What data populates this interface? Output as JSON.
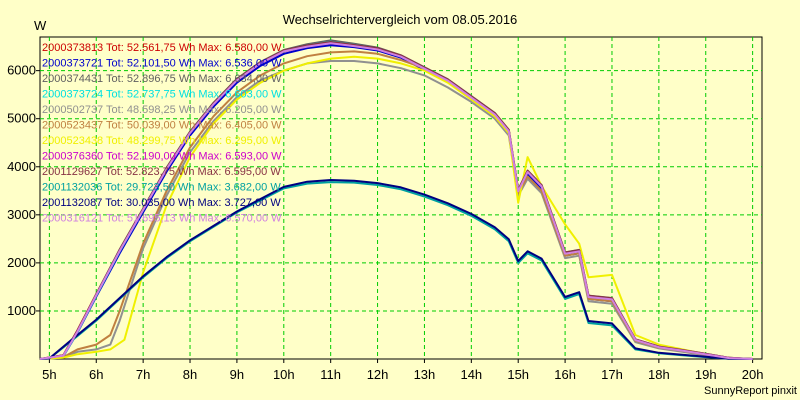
{
  "chart_data": {
    "type": "line",
    "title": "Wechselrichtervergleich vom 08.05.2016",
    "ylabel": "W",
    "xlabel": "",
    "xlim": [
      4.8,
      20.2
    ],
    "ylim": [
      0,
      6700
    ],
    "x_ticks": [
      5,
      6,
      7,
      8,
      9,
      10,
      11,
      12,
      13,
      14,
      15,
      16,
      17,
      18,
      19,
      20
    ],
    "x_tick_labels": [
      "5h",
      "6h",
      "7h",
      "8h",
      "9h",
      "10h",
      "11h",
      "12h",
      "13h",
      "14h",
      "15h",
      "16h",
      "17h",
      "18h",
      "19h",
      "20h"
    ],
    "y_ticks": [
      1000,
      2000,
      3000,
      4000,
      5000,
      6000
    ],
    "y_tick_labels": [
      "1000",
      "2000",
      "3000",
      "4000",
      "5000",
      "6000"
    ],
    "grid": true,
    "legend_position": "top-left",
    "footer": "SunnyReport pinxit",
    "series": [
      {
        "id": "2000373813",
        "label": "2000373813 Tot: 52.561,75 Wh Max: 6.580,00 W",
        "color": "#cc0000",
        "x": [
          4.8,
          5.3,
          5.6,
          6.0,
          6.5,
          7.0,
          7.5,
          8.0,
          8.5,
          9.0,
          9.5,
          10.0,
          10.5,
          11.0,
          11.5,
          12.0,
          12.5,
          13.0,
          13.5,
          14.0,
          14.5,
          14.8,
          15.0,
          15.2,
          15.5,
          16.0,
          16.3,
          16.5,
          17.0,
          17.5,
          18.0,
          18.5,
          19.0,
          19.5,
          20.0
        ],
        "y": [
          0,
          80,
          600,
          1350,
          2250,
          3100,
          3950,
          4700,
          5300,
          5800,
          6150,
          6400,
          6500,
          6570,
          6520,
          6450,
          6300,
          6050,
          5800,
          5450,
          5100,
          4750,
          3500,
          3900,
          3600,
          2200,
          2250,
          1300,
          1250,
          400,
          250,
          180,
          100,
          20,
          0
        ]
      },
      {
        "id": "2000373721",
        "label": "2000373721 Tot: 52.101,50 Wh Max: 6.536,00 W",
        "color": "#0000cc",
        "x": [
          4.8,
          5.3,
          5.6,
          6.0,
          6.5,
          7.0,
          7.5,
          8.0,
          8.5,
          9.0,
          9.5,
          10.0,
          10.5,
          11.0,
          11.5,
          12.0,
          12.5,
          13.0,
          13.5,
          14.0,
          14.5,
          14.8,
          15.0,
          15.2,
          15.5,
          16.0,
          16.3,
          16.5,
          17.0,
          17.5,
          18.0,
          18.5,
          19.0,
          19.5,
          20.0
        ],
        "y": [
          0,
          60,
          550,
          1300,
          2200,
          3050,
          3900,
          4650,
          5250,
          5750,
          6100,
          6350,
          6470,
          6530,
          6490,
          6420,
          6270,
          6020,
          5770,
          5420,
          5070,
          4720,
          3450,
          3850,
          3550,
          2150,
          2200,
          1250,
          1200,
          380,
          240,
          170,
          90,
          15,
          0
        ]
      },
      {
        "id": "2000374431",
        "label": "2000374431 Tot: 52.896,75 Wh Max: 6.634,00 W",
        "color": "#606060",
        "x": [
          4.8,
          5.3,
          5.6,
          6.0,
          6.5,
          7.0,
          7.5,
          8.0,
          8.5,
          9.0,
          9.5,
          10.0,
          10.5,
          11.0,
          11.5,
          12.0,
          12.5,
          13.0,
          13.5,
          14.0,
          14.5,
          14.8,
          15.0,
          15.2,
          15.5,
          16.0,
          16.3,
          16.5,
          17.0,
          17.5,
          18.0,
          18.5,
          19.0,
          19.5,
          20.0
        ],
        "y": [
          0,
          70,
          580,
          1350,
          2280,
          3130,
          3980,
          4730,
          5330,
          5830,
          6180,
          6430,
          6550,
          6630,
          6560,
          6480,
          6320,
          6070,
          5820,
          5470,
          5120,
          4770,
          3520,
          3920,
          3620,
          2220,
          2270,
          1320,
          1270,
          410,
          260,
          190,
          110,
          25,
          0
        ]
      },
      {
        "id": "2000373724",
        "label": "2000373724 Tot: 52.737,75 Wh Max: 6.603,00 W",
        "color": "#00e0e0",
        "x": [
          4.8,
          5.3,
          5.6,
          6.0,
          6.5,
          7.0,
          7.5,
          8.0,
          8.5,
          9.0,
          9.5,
          10.0,
          10.5,
          11.0,
          11.5,
          12.0,
          12.5,
          13.0,
          13.5,
          14.0,
          14.5,
          14.8,
          15.0,
          15.2,
          15.5,
          16.0,
          16.3,
          16.5,
          17.0,
          17.5,
          18.0,
          18.5,
          19.0,
          19.5,
          20.0
        ],
        "y": [
          0,
          65,
          560,
          1320,
          2240,
          3100,
          3960,
          4710,
          5310,
          5810,
          6160,
          6410,
          6530,
          6600,
          6540,
          6460,
          6300,
          6050,
          5800,
          5450,
          5100,
          4750,
          3500,
          3900,
          3600,
          2200,
          2250,
          1300,
          1250,
          400,
          250,
          180,
          100,
          20,
          0
        ]
      },
      {
        "id": "2000502737",
        "label": "2000502737 Tot: 48.598,25 Wh Max: 6.205,00 W",
        "color": "#909090",
        "x": [
          4.8,
          5.3,
          5.6,
          6.0,
          6.3,
          6.5,
          7.0,
          7.5,
          8.0,
          8.5,
          9.0,
          9.5,
          10.0,
          10.5,
          11.0,
          11.5,
          12.0,
          12.5,
          13.0,
          13.5,
          14.0,
          14.5,
          14.8,
          15.0,
          15.2,
          15.5,
          16.0,
          16.3,
          16.5,
          17.0,
          17.5,
          18.0,
          18.5,
          19.0,
          19.5,
          20.0
        ],
        "y": [
          0,
          30,
          150,
          200,
          300,
          800,
          2300,
          3400,
          4300,
          4950,
          5450,
          5800,
          6000,
          6150,
          6200,
          6200,
          6150,
          6050,
          5900,
          5650,
          5350,
          5000,
          4650,
          3400,
          3750,
          3450,
          2100,
          2150,
          1200,
          1150,
          350,
          220,
          150,
          80,
          10,
          0
        ]
      },
      {
        "id": "2000523437",
        "label": "2000523437 Tot: 50.039,00 Wh Max: 6.405,00 W",
        "color": "#c08040",
        "x": [
          4.8,
          5.3,
          5.6,
          6.0,
          6.3,
          6.5,
          7.0,
          7.5,
          8.0,
          8.5,
          9.0,
          9.5,
          10.0,
          10.5,
          11.0,
          11.5,
          12.0,
          12.5,
          13.0,
          13.5,
          14.0,
          14.5,
          14.8,
          15.0,
          15.2,
          15.5,
          16.0,
          16.3,
          16.5,
          17.0,
          17.5,
          18.0,
          18.5,
          19.0,
          19.5,
          20.0
        ],
        "y": [
          0,
          40,
          200,
          300,
          500,
          1000,
          2400,
          3500,
          4400,
          5050,
          5550,
          5900,
          6150,
          6300,
          6380,
          6400,
          6350,
          6220,
          6050,
          5800,
          5450,
          5100,
          4750,
          3450,
          3800,
          3500,
          2150,
          2200,
          1250,
          1200,
          380,
          240,
          170,
          90,
          15,
          0
        ]
      },
      {
        "id": "2000523438",
        "label": "2000523438 Tot: 48.299,75 Wh Max: 6.295,00 W",
        "color": "#f0f000",
        "x": [
          4.8,
          5.3,
          5.6,
          6.0,
          6.3,
          6.6,
          7.0,
          7.5,
          8.0,
          8.5,
          9.0,
          9.5,
          10.0,
          10.5,
          11.0,
          11.5,
          12.0,
          12.5,
          13.0,
          13.5,
          14.0,
          14.5,
          14.8,
          15.0,
          15.2,
          15.5,
          16.0,
          16.3,
          16.5,
          17.0,
          17.5,
          18.0,
          18.5,
          19.0,
          19.5,
          20.0
        ],
        "y": [
          0,
          30,
          100,
          150,
          200,
          400,
          1800,
          3200,
          4200,
          4900,
          5400,
          5750,
          6000,
          6150,
          6250,
          6290,
          6250,
          6150,
          6000,
          5750,
          5400,
          5050,
          4700,
          3250,
          4200,
          3600,
          2800,
          2400,
          1700,
          1750,
          500,
          300,
          200,
          100,
          20,
          0
        ]
      },
      {
        "id": "2000376360",
        "label": "2000376360 Tot: 52.190,00 Wh Max: 6.593,00 W",
        "color": "#cc00cc",
        "x": [
          4.8,
          5.3,
          5.6,
          6.0,
          6.5,
          7.0,
          7.5,
          8.0,
          8.5,
          9.0,
          9.5,
          10.0,
          10.5,
          11.0,
          11.5,
          12.0,
          12.5,
          13.0,
          13.5,
          14.0,
          14.5,
          14.8,
          15.0,
          15.2,
          15.5,
          16.0,
          16.3,
          16.5,
          17.0,
          17.5,
          18.0,
          18.5,
          19.0,
          19.5,
          20.0
        ],
        "y": [
          0,
          75,
          590,
          1340,
          2260,
          3110,
          3960,
          4710,
          5310,
          5810,
          6160,
          6410,
          6520,
          6590,
          6530,
          6460,
          6310,
          6060,
          5810,
          5460,
          5110,
          4760,
          3510,
          3910,
          3610,
          2210,
          2260,
          1310,
          1260,
          405,
          255,
          185,
          105,
          22,
          0
        ]
      },
      {
        "id": "2001129627",
        "label": "2001129627 Tot: 52.823,75 Wh Max: 6.595,00 W",
        "color": "#883344",
        "x": [
          4.8,
          5.3,
          5.6,
          6.0,
          6.5,
          7.0,
          7.5,
          8.0,
          8.5,
          9.0,
          9.5,
          10.0,
          10.5,
          11.0,
          11.5,
          12.0,
          12.5,
          13.0,
          13.5,
          14.0,
          14.5,
          14.8,
          15.0,
          15.2,
          15.5,
          16.0,
          16.3,
          16.5,
          17.0,
          17.5,
          18.0,
          18.5,
          19.0,
          19.5,
          20.0
        ],
        "y": [
          0,
          78,
          595,
          1345,
          2270,
          3120,
          3970,
          4720,
          5320,
          5820,
          6170,
          6420,
          6530,
          6595,
          6535,
          6465,
          6315,
          6065,
          5815,
          5465,
          5115,
          4765,
          3515,
          3915,
          3615,
          2215,
          2265,
          1315,
          1265,
          408,
          258,
          188,
          108,
          24,
          0
        ]
      },
      {
        "id": "2001132036",
        "label": "2001132036 Tot: 29.723,50 Wh Max: 3.682,00 W",
        "color": "#00a0a0",
        "x": [
          4.8,
          5.0,
          5.5,
          6.0,
          6.5,
          7.0,
          7.5,
          8.0,
          8.5,
          9.0,
          9.5,
          10.0,
          10.5,
          11.0,
          11.5,
          12.0,
          12.5,
          13.0,
          13.5,
          14.0,
          14.5,
          14.8,
          15.0,
          15.2,
          15.5,
          16.0,
          16.3,
          16.5,
          17.0,
          17.5,
          18.0,
          18.5,
          19.0,
          19.5,
          20.0
        ],
        "y": [
          0,
          10,
          400,
          800,
          1250,
          1700,
          2100,
          2450,
          2750,
          3050,
          3300,
          3550,
          3650,
          3680,
          3670,
          3620,
          3530,
          3380,
          3200,
          2980,
          2700,
          2450,
          2000,
          2200,
          2050,
          1250,
          1350,
          750,
          700,
          200,
          120,
          80,
          40,
          5,
          0
        ]
      },
      {
        "id": "2001132087",
        "label": "2001132087 Tot: 30.035,00 Wh Max: 3.727,00 W",
        "color": "#000080",
        "x": [
          4.8,
          5.0,
          5.5,
          6.0,
          6.5,
          7.0,
          7.5,
          8.0,
          8.5,
          9.0,
          9.5,
          10.0,
          10.5,
          11.0,
          11.5,
          12.0,
          12.5,
          13.0,
          13.5,
          14.0,
          14.5,
          14.8,
          15.0,
          15.2,
          15.5,
          16.0,
          16.3,
          16.5,
          17.0,
          17.5,
          18.0,
          18.5,
          19.0,
          19.5,
          20.0
        ],
        "y": [
          0,
          12,
          420,
          820,
          1270,
          1720,
          2120,
          2470,
          2770,
          3070,
          3330,
          3580,
          3690,
          3725,
          3710,
          3660,
          3570,
          3420,
          3240,
          3020,
          2740,
          2490,
          2040,
          2240,
          2090,
          1290,
          1390,
          790,
          740,
          220,
          130,
          90,
          45,
          6,
          0
        ]
      },
      {
        "id": "2000316121",
        "label": "2000316121 Tot: 51.695,13 Wh Max: 6.570,00 W",
        "color": "#d080e0",
        "x": [
          4.8,
          5.3,
          5.6,
          6.0,
          6.5,
          7.0,
          7.5,
          8.0,
          8.5,
          9.0,
          9.5,
          10.0,
          10.5,
          11.0,
          11.5,
          12.0,
          12.5,
          13.0,
          13.5,
          14.0,
          14.5,
          14.8,
          15.0,
          15.2,
          15.5,
          16.0,
          16.3,
          16.5,
          17.0,
          17.5,
          18.0,
          18.5,
          19.0,
          19.5,
          20.0
        ],
        "y": [
          0,
          70,
          570,
          1330,
          2250,
          3100,
          3950,
          4700,
          5300,
          5800,
          6150,
          6400,
          6500,
          6570,
          6510,
          6440,
          6290,
          6040,
          5790,
          5440,
          5090,
          4740,
          3490,
          3890,
          3590,
          2190,
          2240,
          1290,
          1240,
          395,
          245,
          175,
          95,
          18,
          0
        ]
      }
    ]
  }
}
